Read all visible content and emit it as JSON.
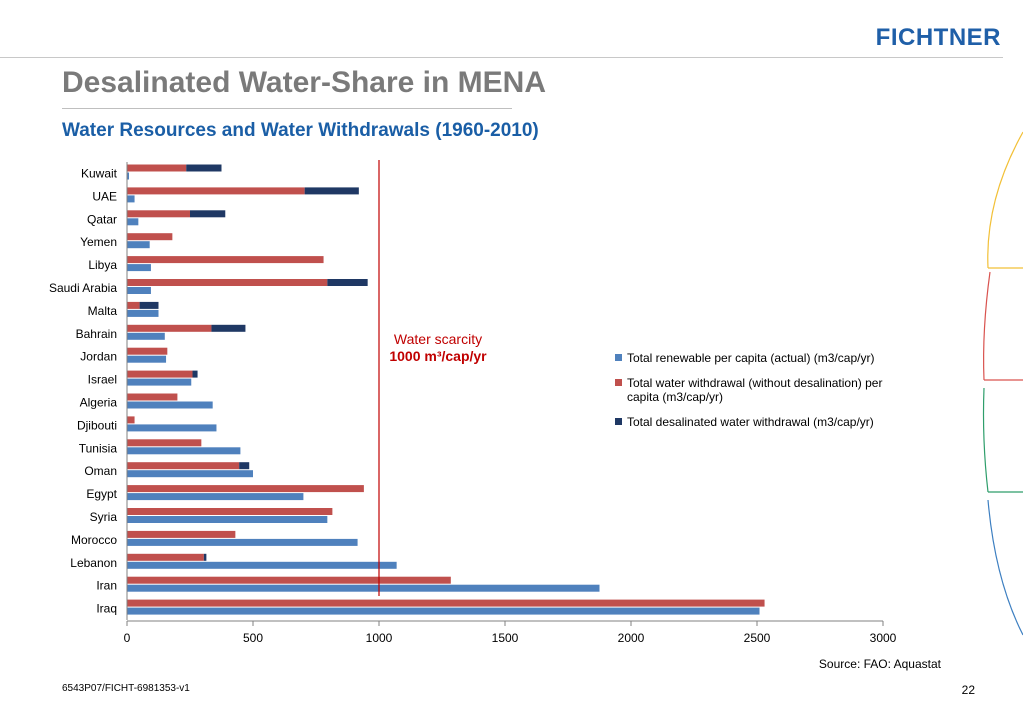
{
  "header": {
    "logo_text": "FICHTNER",
    "title": "Desalinated Water-Share in MENA",
    "subtitle": "Water Resources and Water Withdrawals (1960-2010)"
  },
  "annotation": {
    "line1": "Water scarcity",
    "line2": "1000 m³/cap/yr",
    "x_value": 1000
  },
  "footer": {
    "source": "Source: FAO: Aquastat",
    "doc_id": "6543P07/FICHT-6981353-v1",
    "page_number": "22"
  },
  "colors": {
    "renewable": "#4f81bd",
    "withdrawal": "#c0504d",
    "desalinated": "#1f3864",
    "scarcity_line": "#c00000",
    "deco_yellow": "#f2c037",
    "deco_red": "#d9534f",
    "deco_green": "#2e9e6b",
    "deco_blue": "#3d7fc1"
  },
  "chart_data": {
    "type": "bar",
    "orientation": "horizontal",
    "stacked_withdrawal": true,
    "categories": [
      "Kuwait",
      "UAE",
      "Qatar",
      "Yemen",
      "Libya",
      "Saudi Arabia",
      "Malta",
      "Bahrain",
      "Jordan",
      "Israel",
      "Algeria",
      "Djibouti",
      "Tunisia",
      "Oman",
      "Egypt",
      "Syria",
      "Morocco",
      "Lebanon",
      "Iran",
      "Iraq"
    ],
    "series": [
      {
        "name": "Total renewable per capita (actual) (m3/cap/yr)",
        "values": [
          8,
          30,
          45,
          90,
          95,
          95,
          125,
          150,
          155,
          255,
          340,
          355,
          450,
          500,
          700,
          795,
          915,
          1070,
          1875,
          2510
        ]
      },
      {
        "name": "Total water withdrawal (without desalination) per capita (m3/cap/yr)",
        "values": [
          235,
          705,
          250,
          180,
          780,
          795,
          50,
          335,
          160,
          260,
          200,
          30,
          295,
          445,
          940,
          815,
          430,
          305,
          1285,
          2530
        ]
      },
      {
        "name": "Total desalinated water withdrawal  (m3/cap/yr)",
        "values": [
          140,
          215,
          140,
          0,
          0,
          160,
          75,
          135,
          0,
          20,
          0,
          0,
          0,
          40,
          0,
          0,
          0,
          10,
          0,
          0
        ]
      }
    ],
    "xlim": [
      0,
      3000
    ],
    "xticks": [
      "0",
      "500",
      "1000",
      "1500",
      "2000",
      "2500",
      "3000"
    ],
    "xlabel": "",
    "ylabel": "",
    "grid": false,
    "legend_position": "right"
  }
}
